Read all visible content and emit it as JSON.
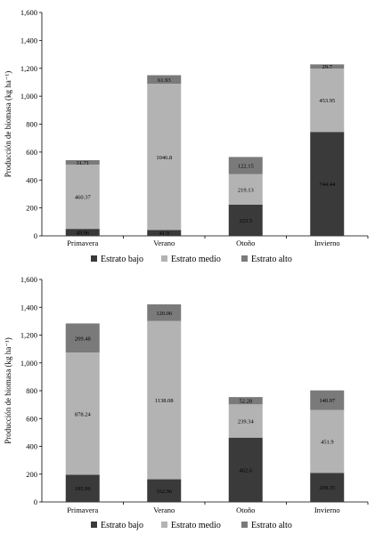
{
  "chart_data": [
    {
      "type": "bar",
      "stacked": true,
      "categories": [
        "Primavera",
        "Verano",
        "Otoño",
        "Invierno"
      ],
      "series": [
        {
          "name": "Estrato bajo",
          "color": "#3a3a3a",
          "values": [
            49.96,
            41.9,
            223.5,
            744.44
          ],
          "labels": [
            "49.96",
            "41.9",
            "223.5",
            "744.44"
          ]
        },
        {
          "name": "Estrato medio",
          "color": "#b3b3b3",
          "values": [
            460.37,
            1046.8,
            219.13,
            453.95
          ],
          "labels": [
            "460.37",
            "1046.8",
            "219.13",
            "453.95"
          ]
        },
        {
          "name": "Estrato alto",
          "color": "#7a7a7a",
          "values": [
            31.71,
            61.93,
            122.15,
            29.7
          ],
          "labels": [
            "31.71",
            "61.93",
            "122.15",
            "29.7"
          ]
        }
      ],
      "ylabel": "Producción de biomasa (kg ha⁻¹)",
      "ylim": [
        0,
        1600
      ],
      "yticks": [
        "0",
        "200",
        "400",
        "600",
        "800",
        "1,000",
        "1,200",
        "1,400",
        "1,600"
      ],
      "grid": false,
      "legend_position": "bottom"
    },
    {
      "type": "bar",
      "stacked": true,
      "categories": [
        "Primavera",
        "Verano",
        "Otoño",
        "Invierno"
      ],
      "series": [
        {
          "name": "Estrato bajo",
          "color": "#3a3a3a",
          "values": [
            195.96,
            162.96,
            462.6,
            209.35
          ],
          "labels": [
            "195.96",
            "162.96",
            "462.6",
            "209.35"
          ]
        },
        {
          "name": "Estrato medio",
          "color": "#b3b3b3",
          "values": [
            878.24,
            1138.08,
            239.34,
            451.9
          ],
          "labels": [
            "878.24",
            "1138.08",
            "239.34",
            "451.9"
          ]
        },
        {
          "name": "Estrato alto",
          "color": "#7a7a7a",
          "values": [
            209.48,
            120.06,
            52.28,
            140.97
          ],
          "labels": [
            "209.48",
            "120.06",
            "52.28",
            "140.97"
          ]
        }
      ],
      "ylabel": "Producción de biomasa (kg ha⁻¹)",
      "ylim": [
        0,
        1600
      ],
      "yticks": [
        "0",
        "200",
        "400",
        "600",
        "800",
        "1,000",
        "1,200",
        "1,400",
        "1,600"
      ],
      "grid": false,
      "legend_position": "bottom"
    }
  ]
}
